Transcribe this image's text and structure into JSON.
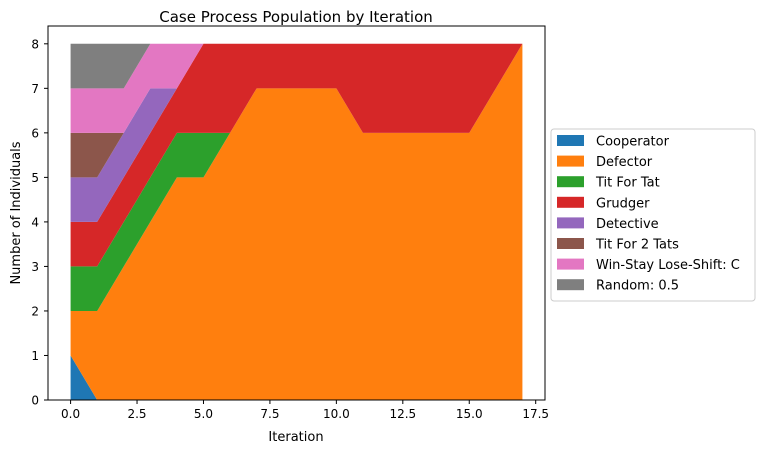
{
  "chart_data": {
    "type": "area",
    "stacked": true,
    "title": "Case Process Population by Iteration",
    "xlabel": "Iteration",
    "ylabel": "Number of Individuals",
    "xlim": [
      -0.85,
      17.85
    ],
    "ylim": [
      0,
      8.4
    ],
    "xticks": [
      0.0,
      2.5,
      5.0,
      7.5,
      10.0,
      12.5,
      15.0,
      17.5
    ],
    "xtick_labels": [
      "0.0",
      "2.5",
      "5.0",
      "7.5",
      "10.0",
      "12.5",
      "15.0",
      "17.5"
    ],
    "yticks": [
      0,
      1,
      2,
      3,
      4,
      5,
      6,
      7,
      8
    ],
    "ytick_labels": [
      "0",
      "1",
      "2",
      "3",
      "4",
      "5",
      "6",
      "7",
      "8"
    ],
    "grid": false,
    "legend_position": "outside-right",
    "x": [
      0,
      1,
      2,
      3,
      4,
      5,
      6,
      7,
      8,
      9,
      10,
      11,
      12,
      13,
      14,
      15,
      16,
      17
    ],
    "series": [
      {
        "name": "Cooperator",
        "color": "#1f77b4",
        "values": [
          1,
          0,
          0,
          0,
          0,
          0,
          0,
          0,
          0,
          0,
          0,
          0,
          0,
          0,
          0,
          0,
          0,
          0
        ]
      },
      {
        "name": "Defector",
        "color": "#ff7f0e",
        "values": [
          1,
          2,
          3,
          4,
          5,
          5,
          6,
          7,
          7,
          7,
          7,
          6,
          6,
          6,
          6,
          6,
          7,
          8
        ]
      },
      {
        "name": "Tit For Tat",
        "color": "#2ca02c",
        "values": [
          1,
          1,
          1,
          1,
          1,
          1,
          0,
          0,
          0,
          0,
          0,
          0,
          0,
          0,
          0,
          0,
          0,
          0
        ]
      },
      {
        "name": "Grudger",
        "color": "#d62728",
        "values": [
          1,
          1,
          1,
          1,
          1,
          2,
          2,
          1,
          1,
          1,
          1,
          2,
          2,
          2,
          2,
          2,
          1,
          0
        ]
      },
      {
        "name": "Detective",
        "color": "#9467bd",
        "values": [
          1,
          1,
          1,
          1,
          0,
          0,
          0,
          0,
          0,
          0,
          0,
          0,
          0,
          0,
          0,
          0,
          0,
          0
        ]
      },
      {
        "name": "Tit For 2 Tats",
        "color": "#8c564b",
        "values": [
          1,
          1,
          0,
          0,
          0,
          0,
          0,
          0,
          0,
          0,
          0,
          0,
          0,
          0,
          0,
          0,
          0,
          0
        ]
      },
      {
        "name": "Win-Stay Lose-Shift: C",
        "color": "#e377c2",
        "values": [
          1,
          1,
          1,
          1,
          1,
          0,
          0,
          0,
          0,
          0,
          0,
          0,
          0,
          0,
          0,
          0,
          0,
          0
        ]
      },
      {
        "name": "Random: 0.5",
        "color": "#7f7f7f",
        "values": [
          1,
          1,
          1,
          0,
          0,
          0,
          0,
          0,
          0,
          0,
          0,
          0,
          0,
          0,
          0,
          0,
          0,
          0
        ]
      }
    ]
  }
}
